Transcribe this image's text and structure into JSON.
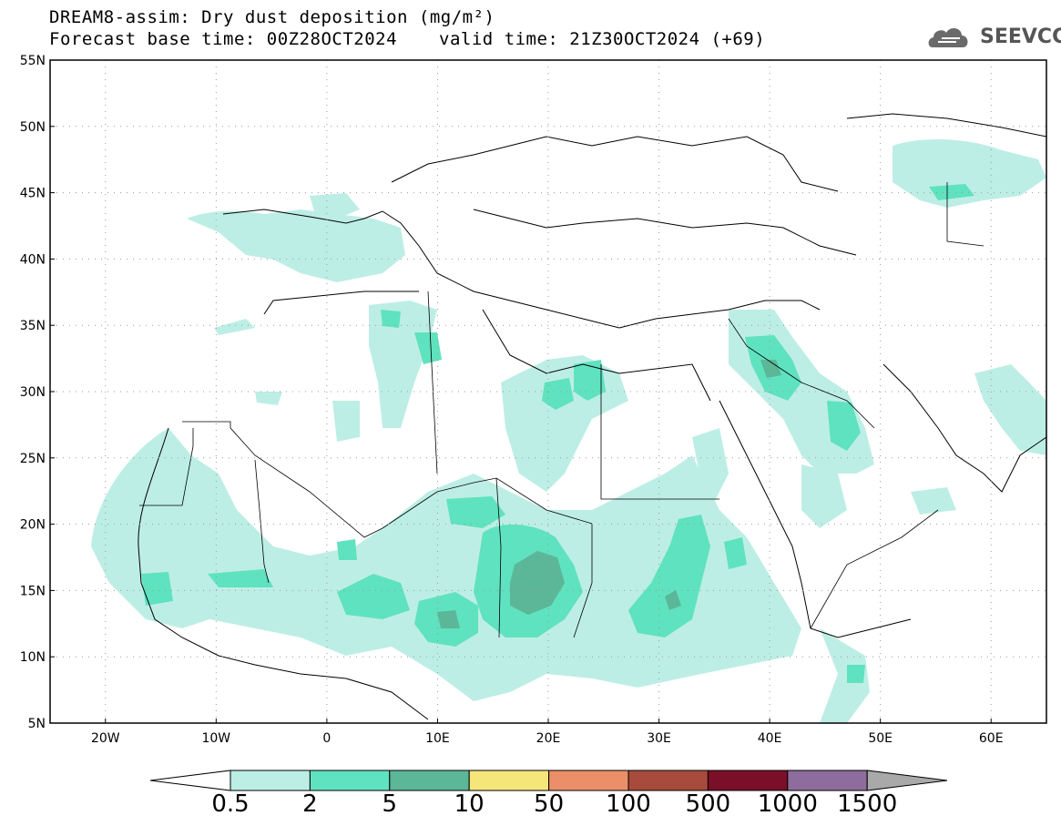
{
  "header": {
    "title_line1": "DREAM8-assim: Dry dust deposition (mg/m²)",
    "title_line2": "Forecast base time: 00Z28OCT2024",
    "valid_time": "valid time: 21Z30OCT2024 (+69)",
    "logo_text": "SEEVCCC"
  },
  "map": {
    "lat_labels": [
      "55N",
      "50N",
      "45N",
      "40N",
      "35N",
      "30N",
      "25N",
      "20N",
      "15N",
      "10N",
      "5N"
    ],
    "lon_labels": [
      "20W",
      "10W",
      "0",
      "10E",
      "20E",
      "30E",
      "40E",
      "50E",
      "60E"
    ],
    "lat_range": [
      5,
      55
    ],
    "lon_range": [
      -25,
      65
    ],
    "grid": "dotted"
  },
  "colorbar": {
    "labels": [
      "0.5",
      "2",
      "5",
      "10",
      "50",
      "100",
      "500",
      "1000",
      "1500"
    ],
    "colors": [
      "#ffffff",
      "#bdeee6",
      "#5fe2bf",
      "#5cb698",
      "#f5e67a",
      "#eb8f68",
      "#a84a3c",
      "#7a0f2a",
      "#8e6c9d",
      "#a9a9a9"
    ]
  }
}
